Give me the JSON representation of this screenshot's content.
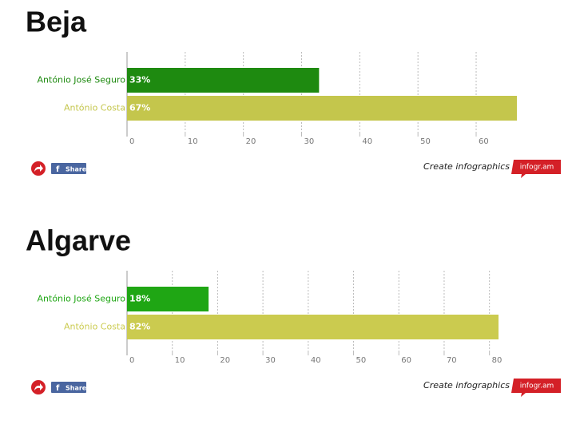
{
  "chart_data": [
    {
      "type": "bar",
      "title": "Beja",
      "categories": [
        "António José Seguro",
        "António Costa"
      ],
      "values": [
        33,
        67
      ],
      "value_labels": [
        "33%",
        "67%"
      ],
      "colors": [
        "#1e8a10",
        "#c4c64c"
      ],
      "xlim": [
        0,
        67
      ],
      "xticks": [
        0,
        10,
        20,
        30,
        40,
        50,
        60
      ],
      "grid": true
    },
    {
      "type": "bar",
      "title": "Algarve",
      "categories": [
        "António José Seguro",
        "António Costa"
      ],
      "values": [
        18,
        82
      ],
      "value_labels": [
        "18%",
        "82%"
      ],
      "colors": [
        "#1fa614",
        "#cbcb4f"
      ],
      "xlim": [
        0,
        82
      ],
      "xticks": [
        0,
        10,
        20,
        30,
        40,
        50,
        60,
        70,
        80
      ],
      "grid": true
    }
  ],
  "footer": {
    "share": "Share",
    "create": "Create infographics",
    "brand": "infogr.am"
  }
}
